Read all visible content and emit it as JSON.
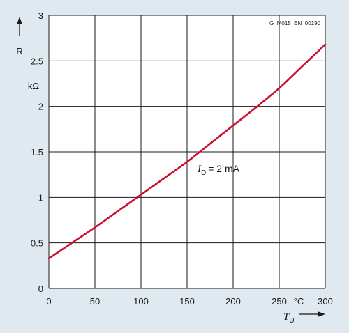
{
  "chart_data": {
    "type": "line",
    "title": "",
    "figure_code": "G_M015_EN_00190",
    "xlabel": "T",
    "xlabel_subscript": "U",
    "xunit": "°C",
    "ylabel": "R",
    "yunit": "kΩ",
    "xlim": [
      0,
      300
    ],
    "ylim": [
      0,
      3
    ],
    "xticks": [
      "0",
      "50",
      "100",
      "150",
      "200",
      "250",
      "300"
    ],
    "yticks": [
      "0",
      "0.5",
      "1",
      "1.5",
      "2",
      "2.5",
      "3"
    ],
    "grid": true,
    "series": [
      {
        "name": "I_D = 2 mA",
        "color": "#c8102e",
        "x": [
          0,
          25,
          50,
          75,
          100,
          125,
          150,
          175,
          200,
          225,
          250,
          275,
          300
        ],
        "y": [
          0.33,
          0.5,
          0.67,
          0.85,
          1.03,
          1.21,
          1.39,
          1.59,
          1.79,
          1.99,
          2.2,
          2.44,
          2.68
        ]
      }
    ],
    "annotation": {
      "symbol": "I",
      "subscript": "D",
      "text": "= 2 mA"
    }
  }
}
